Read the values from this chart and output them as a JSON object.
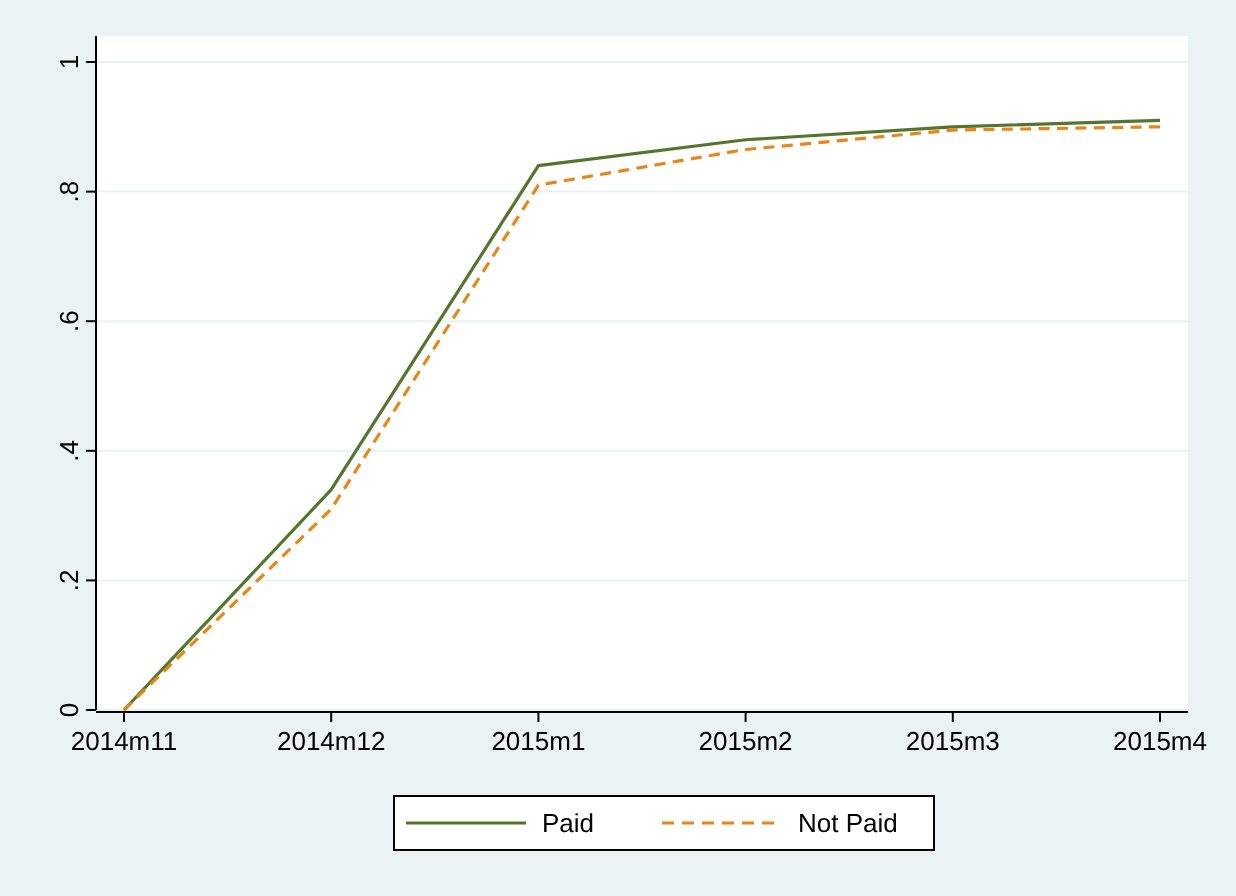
{
  "chart_data": {
    "type": "line",
    "categories": [
      "2014m11",
      "2014m12",
      "2015m1",
      "2015m2",
      "2015m3",
      "2015m4"
    ],
    "series": [
      {
        "name": "Paid",
        "color": "#55752f",
        "values": [
          0,
          0.34,
          0.84,
          0.88,
          0.9,
          0.91
        ],
        "line_style": "solid"
      },
      {
        "name": "Not Paid",
        "color": "#e8861a",
        "values": [
          0,
          0.31,
          0.81,
          0.865,
          0.895,
          0.9
        ],
        "line_style": "dashed"
      }
    ],
    "ylim": [
      0,
      1
    ],
    "yticks": [
      0,
      {
        "value": 0.2,
        "label": ".2"
      },
      {
        "value": 0.4,
        "label": ".4"
      },
      {
        "value": 0.6,
        "label": ".6"
      },
      {
        "value": 0.8,
        "label": ".8"
      },
      1
    ],
    "grid": "y",
    "legend": "bottom",
    "marker": "none"
  }
}
